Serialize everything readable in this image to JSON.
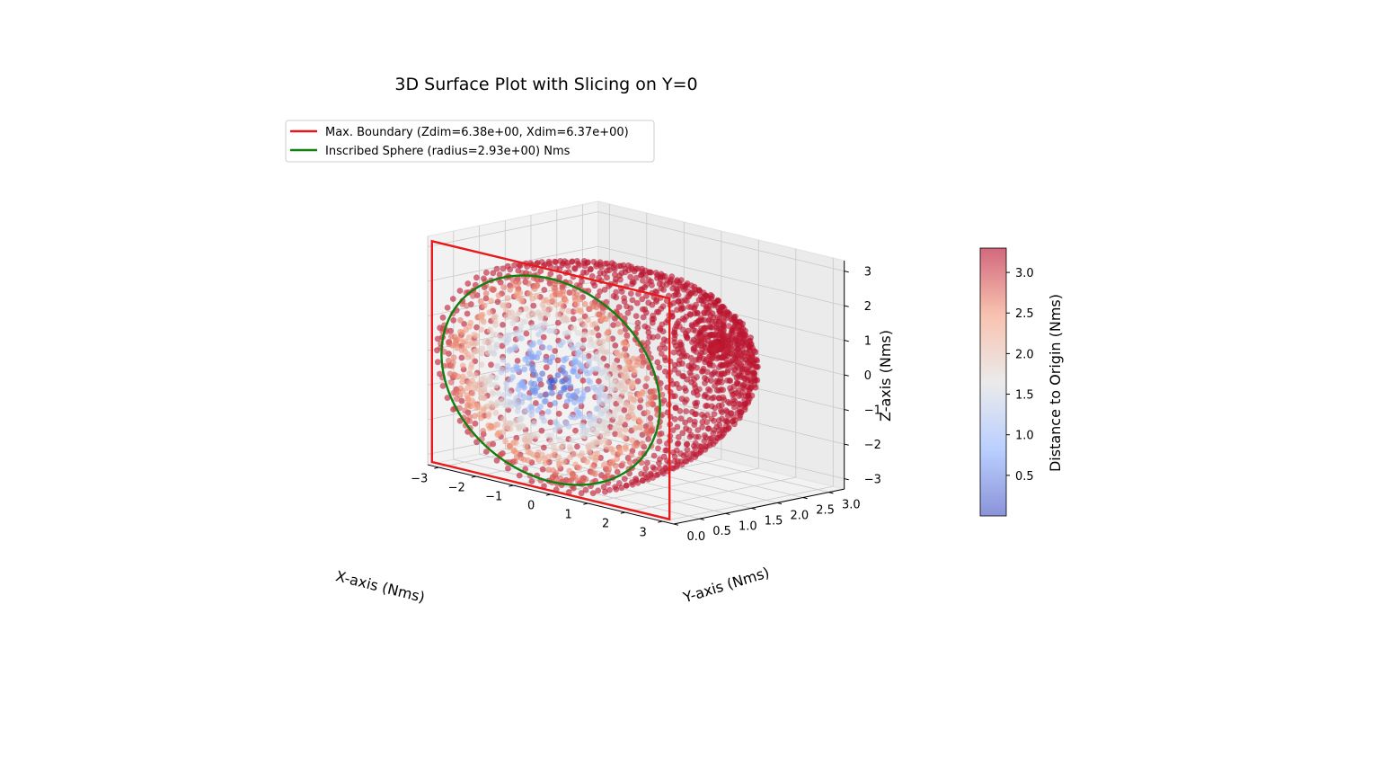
{
  "chart_data": {
    "type": "scatter",
    "projection": "3d",
    "title": "3D Surface Plot with Slicing on Y=0",
    "xlabel": "X-axis (Nms)",
    "ylabel": "Y-axis (Nms)",
    "zlabel": "Z-axis (Nms)",
    "xlim": [
      -3.3,
      3.3
    ],
    "ylim": [
      0,
      3.3
    ],
    "zlim": [
      -3.3,
      3.3
    ],
    "x_ticks": [
      "−3",
      "−2",
      "−1",
      "0",
      "1",
      "2",
      "3"
    ],
    "y_ticks": [
      "0.0",
      "0.5",
      "1.0",
      "1.5",
      "2.0",
      "2.5",
      "3.0"
    ],
    "z_ticks": [
      "−3",
      "−2",
      "−1",
      "0",
      "1",
      "2",
      "3"
    ],
    "grid": true,
    "colormap": "coolwarm",
    "point_alpha": 0.6,
    "surface": {
      "shape": "half-ellipsoid (y >= 0)",
      "semi_axis_x": 3.2,
      "semi_axis_y": 3.3,
      "semi_axis_z": 3.2,
      "color_value": "distance to origin"
    },
    "colorbar": {
      "label": "Distance to Origin (Nms)",
      "range": [
        0.0,
        3.3
      ],
      "ticks": [
        "0.5",
        "1.0",
        "1.5",
        "2.0",
        "2.5",
        "3.0"
      ],
      "tick_values": [
        0.5,
        1.0,
        1.5,
        2.0,
        2.5,
        3.0
      ]
    },
    "legend": {
      "placement": "upper-left",
      "entries": [
        {
          "label": "Max. Boundary (Zdim=6.38e+00, Xdim=6.37e+00)",
          "color": "#e8191a"
        },
        {
          "label": "Inscribed Sphere (radius=2.93e+00) Nms",
          "color": "#118011"
        }
      ]
    },
    "boundary": {
      "plane": "y=0",
      "xdim": 6.37,
      "zdim": 6.38,
      "color": "#e8191a"
    },
    "inscribed_circle": {
      "plane": "y=0",
      "radius": 2.93,
      "color": "#118011"
    }
  }
}
